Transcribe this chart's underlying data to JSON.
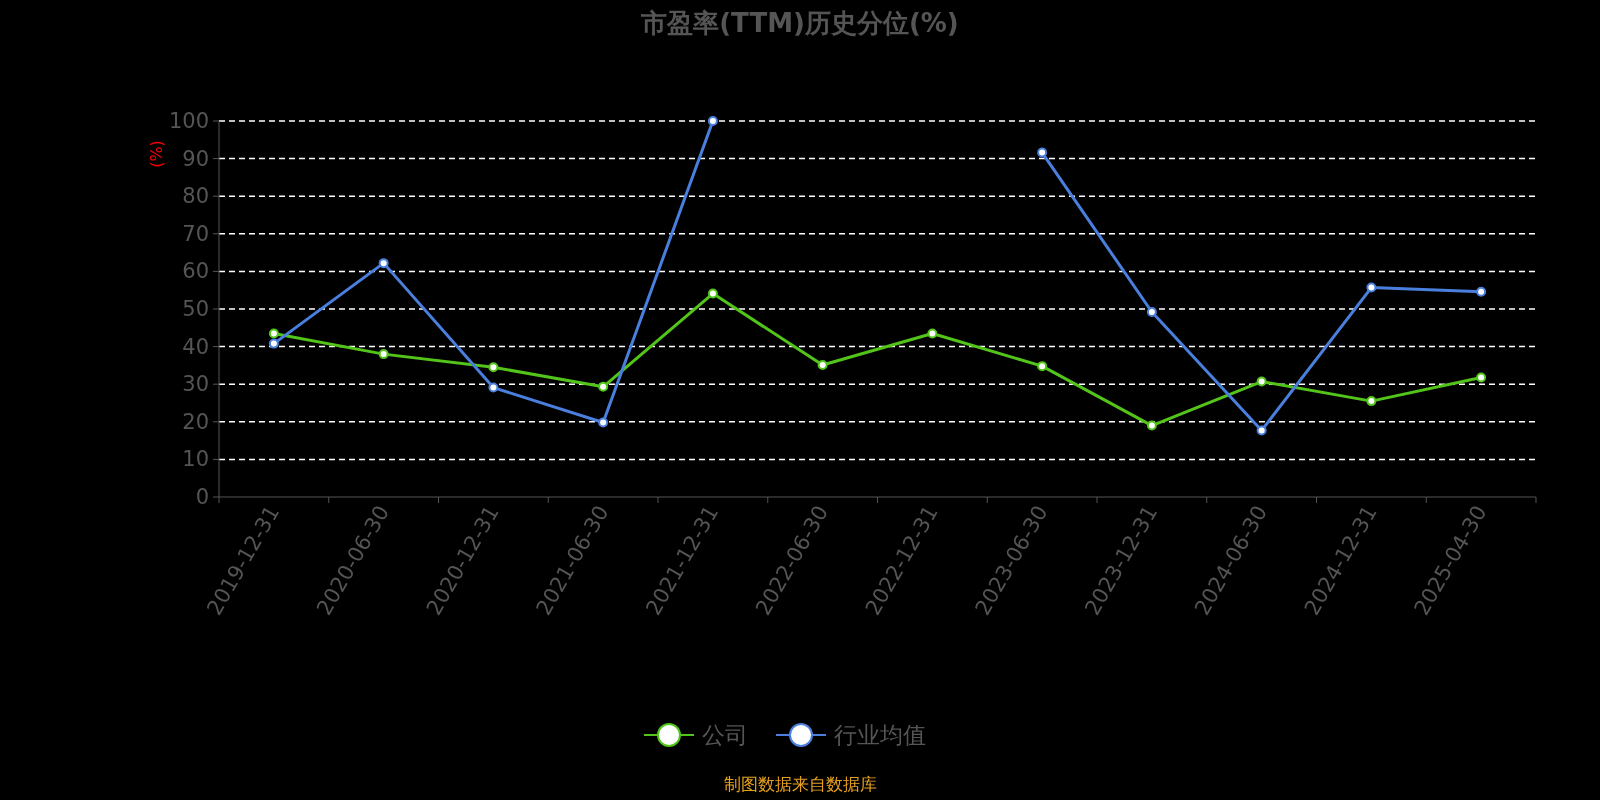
{
  "chart_data": {
    "type": "line",
    "title": "市盈率(TTM)历史分位(%)",
    "ylabel": "(%)",
    "categories": [
      "2019-12-31",
      "2020-06-30",
      "2020-12-31",
      "2021-06-30",
      "2021-12-31",
      "2022-06-30",
      "2022-12-31",
      "2023-06-30",
      "2023-12-31",
      "2024-06-30",
      "2024-12-31",
      "2025-04-30"
    ],
    "series": [
      {
        "name": "公司",
        "color": "#52c41a",
        "values": [
          43.5,
          38.0,
          34.5,
          29.3,
          54.1,
          35.1,
          43.5,
          34.8,
          19.0,
          30.7,
          25.5,
          31.8
        ]
      },
      {
        "name": "行业均值",
        "color": "#4a7fdd",
        "values": [
          40.8,
          62.2,
          29.1,
          19.8,
          100,
          null,
          null,
          91.6,
          49.2,
          17.7,
          55.7,
          54.6
        ]
      }
    ],
    "ylim": [
      0,
      100
    ],
    "yticks": [
      0,
      10,
      20,
      30,
      40,
      50,
      60,
      70,
      80,
      90,
      100
    ],
    "grid": "y",
    "legend": "bottom",
    "marker": "circle",
    "line_style": "solid",
    "annotations": [
      "制图数据来自数据库"
    ]
  }
}
